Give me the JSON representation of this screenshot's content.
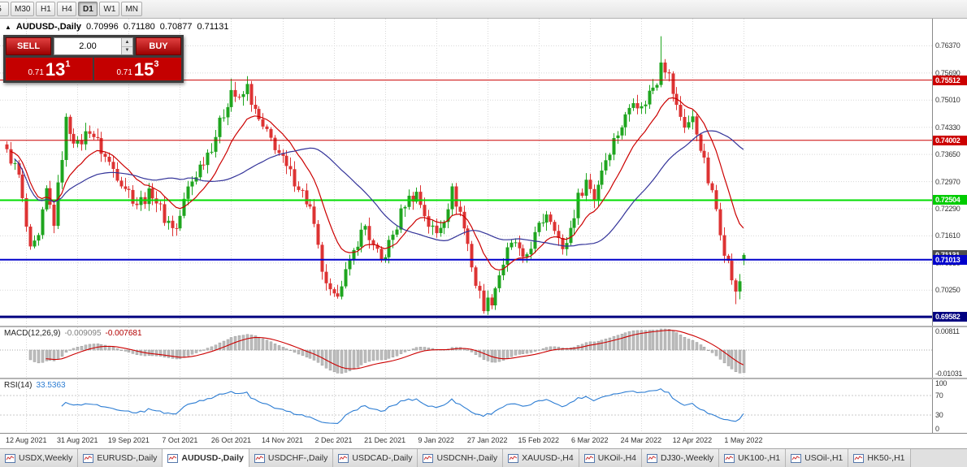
{
  "toolbar": {
    "timeframes": [
      "5",
      "M30",
      "H1",
      "H4",
      "D1",
      "W1",
      "MN"
    ],
    "active": "D1"
  },
  "chart_header": {
    "arrow": "▲",
    "symbol": "AUDUSD-,Daily",
    "open": "0.70996",
    "high": "0.71180",
    "low": "0.70877",
    "close": "0.71131"
  },
  "trade_panel": {
    "sell_label": "SELL",
    "buy_label": "BUY",
    "volume": "2.00",
    "spin_up": "▲",
    "spin_down": "▼",
    "sell_price": {
      "prefix": "0.71",
      "big": "13",
      "sup": "1"
    },
    "buy_price": {
      "prefix": "0.71",
      "big": "15",
      "sup": "3"
    }
  },
  "price_axis": {
    "ticks": [
      "0.76370",
      "0.75690",
      "0.75010",
      "0.74330",
      "0.73650",
      "0.72970",
      "0.72290",
      "0.71610",
      "0.70930",
      "0.70250",
      "0.69570"
    ],
    "badges": [
      {
        "label": "0.75512",
        "price": 0.75512,
        "bg": "#cc0000",
        "fg": "#ffffff"
      },
      {
        "label": "0.74002",
        "price": 0.74002,
        "bg": "#cc0000",
        "fg": "#ffffff"
      },
      {
        "label": "0.72504",
        "price": 0.72504,
        "bg": "#00cc00",
        "fg": "#ffffff"
      },
      {
        "label": "0.71131",
        "price": 0.71131,
        "bg": "#4d4d4d",
        "fg": "#ffffff"
      },
      {
        "label": "0.71013",
        "price": 0.71013,
        "bg": "#0000cc",
        "fg": "#ffffff"
      },
      {
        "label": "0.69582",
        "price": 0.69582,
        "bg": "#000080",
        "fg": "#ffffff"
      }
    ]
  },
  "hlines": [
    {
      "price": 0.75512,
      "color": "#cc0000",
      "width": 1
    },
    {
      "price": 0.74002,
      "color": "#cc0000",
      "width": 1
    },
    {
      "price": 0.72504,
      "color": "#00dd00",
      "width": 2
    },
    {
      "price": 0.71013,
      "color": "#0000cc",
      "width": 2
    },
    {
      "price": 0.69582,
      "color": "#000080",
      "width": 3
    }
  ],
  "macd": {
    "name": "MACD(12,26,9)",
    "value1": "-0.009095",
    "value2": "-0.007681",
    "ticks": [
      {
        "label": "0.00811",
        "value": 0.00811
      },
      {
        "label": "-0.01031",
        "value": -0.01031
      }
    ],
    "range": [
      0.0095,
      -0.0115
    ]
  },
  "rsi": {
    "name": "RSI(14)",
    "value": "33.5363",
    "ticks": [
      {
        "label": "100",
        "value": 100
      },
      {
        "label": "70",
        "value": 70
      },
      {
        "label": "30",
        "value": 30
      },
      {
        "label": "0",
        "value": 0
      }
    ],
    "levels": [
      70,
      30
    ]
  },
  "date_axis": {
    "labels": [
      "12 Aug 2021",
      "31 Aug 2021",
      "19 Sep 2021",
      "7 Oct 2021",
      "26 Oct 2021",
      "14 Nov 2021",
      "2 Dec 2021",
      "21 Dec 2021",
      "9 Jan 2022",
      "27 Jan 2022",
      "15 Feb 2022",
      "6 Mar 2022",
      "24 Mar 2022",
      "12 Apr 2022",
      "1 May 2022"
    ],
    "label_days": [
      5,
      18,
      31,
      44,
      57,
      70,
      83,
      96,
      109,
      122,
      135,
      148,
      161,
      174,
      187
    ]
  },
  "tabs": {
    "items": [
      "USDX,Weekly",
      "EURUSD-,Daily",
      "AUDUSD-,Daily",
      "USDCHF-,Daily",
      "USDCAD-,Daily",
      "USDCNH-,Daily",
      "XAUUSD-,H4",
      "UKOil-,H4",
      "DJ30-,Weekly",
      "UK100-,H1",
      "USOil-,H1",
      "HK50-,H1"
    ],
    "active": "AUDUSD-,Daily"
  },
  "chart_data": {
    "type": "candlestick",
    "symbol": "AUDUSD",
    "timeframe": "Daily",
    "visible_range": {
      "start": "12 Aug 2021",
      "end": "1 May 2022"
    },
    "current_ohlc": {
      "open": 0.70996,
      "high": 0.7118,
      "low": 0.70877,
      "close": 0.71131
    },
    "levels": {
      "resistance": [
        0.75512,
        0.74002
      ],
      "mid": 0.72504,
      "support": [
        0.71013,
        0.69582
      ]
    },
    "y_range": [
      0.6936,
      0.7705
    ],
    "total_days": 188,
    "noise": 0.0034,
    "close_waypoints": [
      [
        0,
        0.7378
      ],
      [
        3,
        0.731
      ],
      [
        6,
        0.7118
      ],
      [
        8,
        0.7152
      ],
      [
        10,
        0.7272
      ],
      [
        12,
        0.7196
      ],
      [
        15,
        0.7448
      ],
      [
        18,
        0.7386
      ],
      [
        21,
        0.743
      ],
      [
        25,
        0.7358
      ],
      [
        29,
        0.73
      ],
      [
        33,
        0.7243
      ],
      [
        37,
        0.727
      ],
      [
        40,
        0.7206
      ],
      [
        43,
        0.7178
      ],
      [
        46,
        0.728
      ],
      [
        49,
        0.7336
      ],
      [
        52,
        0.7388
      ],
      [
        55,
        0.7468
      ],
      [
        57,
        0.7528
      ],
      [
        59,
        0.7496
      ],
      [
        61,
        0.7534
      ],
      [
        63,
        0.7468
      ],
      [
        65,
        0.7428
      ],
      [
        68,
        0.7388
      ],
      [
        71,
        0.7328
      ],
      [
        74,
        0.7288
      ],
      [
        77,
        0.7228
      ],
      [
        79,
        0.7126
      ],
      [
        81,
        0.7028
      ],
      [
        83,
        0.7
      ],
      [
        85,
        0.705
      ],
      [
        87,
        0.7088
      ],
      [
        89,
        0.715
      ],
      [
        91,
        0.7186
      ],
      [
        93,
        0.713
      ],
      [
        95,
        0.7096
      ],
      [
        97,
        0.714
      ],
      [
        99,
        0.7186
      ],
      [
        101,
        0.7246
      ],
      [
        104,
        0.7268
      ],
      [
        107,
        0.719
      ],
      [
        109,
        0.7166
      ],
      [
        111,
        0.721
      ],
      [
        113,
        0.7272
      ],
      [
        115,
        0.722
      ],
      [
        117,
        0.714
      ],
      [
        119,
        0.704
      ],
      [
        121,
        0.6988
      ],
      [
        123,
        0.7002
      ],
      [
        125,
        0.7066
      ],
      [
        127,
        0.712
      ],
      [
        129,
        0.7146
      ],
      [
        131,
        0.7092
      ],
      [
        133,
        0.714
      ],
      [
        135,
        0.718
      ],
      [
        137,
        0.7222
      ],
      [
        139,
        0.719
      ],
      [
        141,
        0.7118
      ],
      [
        143,
        0.718
      ],
      [
        145,
        0.7256
      ],
      [
        147,
        0.73
      ],
      [
        149,
        0.7258
      ],
      [
        151,
        0.733
      ],
      [
        153,
        0.738
      ],
      [
        155,
        0.742
      ],
      [
        157,
        0.7458
      ],
      [
        159,
        0.751
      ],
      [
        161,
        0.7478
      ],
      [
        163,
        0.752
      ],
      [
        165,
        0.7552
      ],
      [
        166,
        0.7608
      ],
      [
        168,
        0.756
      ],
      [
        170,
        0.7482
      ],
      [
        172,
        0.744
      ],
      [
        174,
        0.7452
      ],
      [
        176,
        0.7388
      ],
      [
        178,
        0.7298
      ],
      [
        180,
        0.7228
      ],
      [
        182,
        0.7128
      ],
      [
        184,
        0.7055
      ],
      [
        185,
        0.7012
      ],
      [
        186,
        0.7048
      ],
      [
        187,
        0.71131
      ]
    ],
    "wick_overrides": {
      "57": {
        "h": 0.7555
      },
      "121": {
        "l": 0.6966
      },
      "166": {
        "h": 0.7661
      },
      "185": {
        "l": 0.699
      }
    },
    "indicators": {
      "macd": {
        "fast": 12,
        "slow": 26,
        "signal": 9
      },
      "rsi": {
        "period": 14
      },
      "ma_fast": 13,
      "ma_slow": 34
    }
  },
  "colors": {
    "up": "#1fa51f",
    "down": "#dd3333",
    "ma_fast": "#cc0000",
    "ma_slow": "#333399",
    "macd_hist": "#bdbdbd",
    "macd_hist_stroke": "#8f8f8f",
    "macd_signal": "#cc0000",
    "rsi_line": "#2b7cd3",
    "rsi_level": "#c8c8c8",
    "grid": "#d8d8d8",
    "axis_text": "#333333"
  }
}
